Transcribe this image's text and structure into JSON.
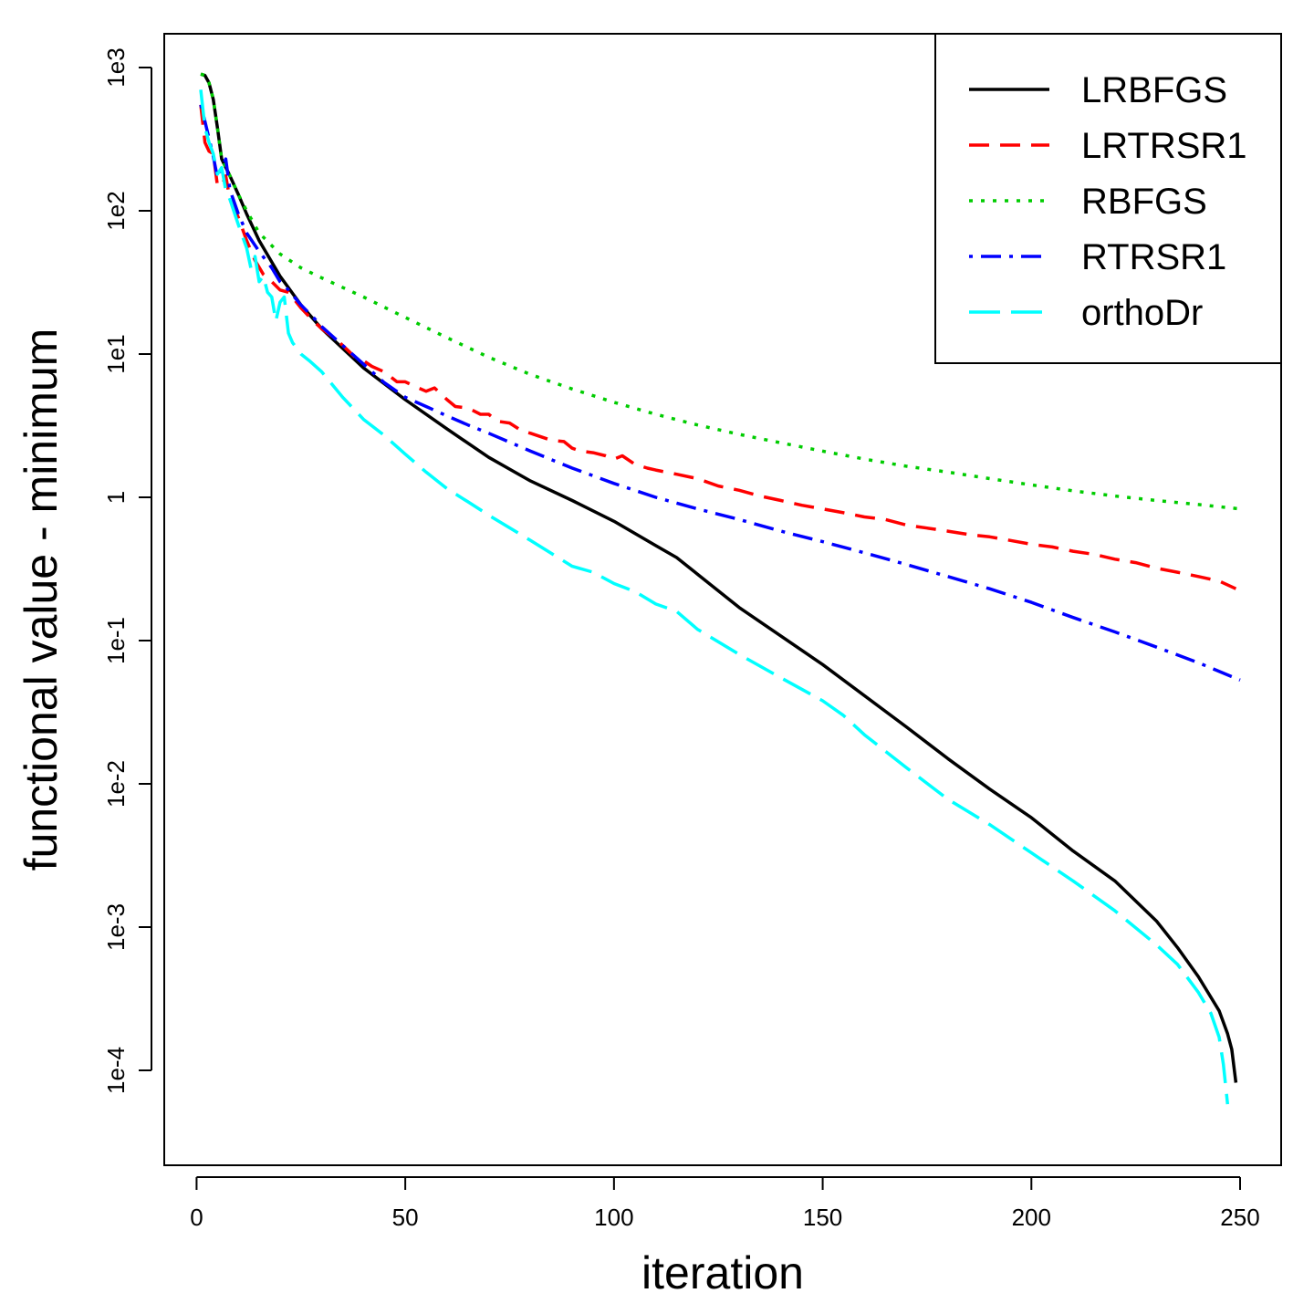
{
  "chart_data": {
    "type": "line",
    "title": "",
    "xlabel": "iteration",
    "ylabel": "functional value - minimum",
    "xlim": [
      -8,
      260
    ],
    "ylim_log10": [
      -4.65,
      3.25
    ],
    "y_scale": "log",
    "xticks": [
      0,
      50,
      100,
      150,
      200,
      250
    ],
    "xtick_labels": [
      "0",
      "50",
      "100",
      "150",
      "200",
      "250"
    ],
    "yticks_log10": [
      3,
      2,
      1,
      0,
      -1,
      -2,
      -3,
      -4
    ],
    "ytick_labels": [
      "1e3",
      "1e2",
      "1e1",
      "1",
      "1e-1",
      "1e-2",
      "1e-3",
      "1e-4"
    ],
    "grid": false,
    "legend_position": "top-right",
    "series": [
      {
        "name": "LRBFGS",
        "color": "#000000",
        "dash": "solid",
        "x": [
          1,
          2,
          3,
          4,
          5,
          6,
          8,
          10,
          12,
          15,
          20,
          25,
          30,
          40,
          50,
          60,
          70,
          80,
          90,
          100,
          110,
          115,
          130,
          150,
          170,
          180,
          190,
          200,
          210,
          220,
          230,
          235,
          240,
          245,
          247,
          248,
          249
        ],
        "y": [
          900,
          880,
          780,
          600,
          380,
          230,
          175,
          130,
          95,
          62,
          35,
          22,
          15,
          8,
          4.8,
          3.0,
          1.9,
          1.3,
          0.95,
          0.68,
          0.46,
          0.38,
          0.17,
          0.068,
          0.025,
          0.015,
          0.0092,
          0.0058,
          0.0034,
          0.0021,
          0.0011,
          0.00072,
          0.00045,
          0.00026,
          0.00018,
          0.00014,
          8.2e-05
        ]
      },
      {
        "name": "LRTRSR1",
        "color": "#ff0000",
        "dash": "dashed",
        "x": [
          1,
          2,
          3,
          4,
          5,
          6,
          7,
          8,
          10,
          12,
          14,
          16,
          18,
          20,
          22,
          25,
          28,
          30,
          33,
          35,
          38,
          40,
          42,
          45,
          48,
          50,
          52,
          55,
          57,
          60,
          62,
          65,
          68,
          70,
          72,
          75,
          78,
          80,
          85,
          88,
          90,
          92,
          95,
          98,
          100,
          102,
          105,
          108,
          110,
          115,
          120,
          125,
          130,
          135,
          140,
          145,
          150,
          155,
          160,
          165,
          170,
          175,
          180,
          185,
          190,
          195,
          200,
          205,
          210,
          215,
          220,
          225,
          230,
          235,
          240,
          245,
          249
        ],
        "y": [
          550,
          300,
          260,
          250,
          150,
          150,
          175,
          120,
          90,
          62,
          45,
          36,
          32,
          28,
          27,
          21,
          17,
          15,
          13,
          11.5,
          9.5,
          9.0,
          8.2,
          7.5,
          6.4,
          6.4,
          6.0,
          5.5,
          5.8,
          4.8,
          4.3,
          4.2,
          3.8,
          3.8,
          3.4,
          3.3,
          2.9,
          2.8,
          2.5,
          2.45,
          2.2,
          2.1,
          2.05,
          1.95,
          1.85,
          1.95,
          1.7,
          1.6,
          1.55,
          1.45,
          1.35,
          1.2,
          1.12,
          1.02,
          0.95,
          0.88,
          0.83,
          0.78,
          0.73,
          0.7,
          0.64,
          0.61,
          0.58,
          0.55,
          0.53,
          0.5,
          0.47,
          0.45,
          0.42,
          0.4,
          0.37,
          0.35,
          0.32,
          0.3,
          0.28,
          0.26,
          0.23
        ]
      },
      {
        "name": "RBFGS",
        "color": "#00cc00",
        "dash": "dotted",
        "x": [
          1,
          2,
          3,
          4,
          5,
          6,
          8,
          10,
          12,
          15,
          20,
          25,
          30,
          40,
          50,
          60,
          70,
          80,
          90,
          100,
          110,
          120,
          130,
          140,
          150,
          160,
          170,
          180,
          190,
          200,
          210,
          220,
          230,
          240,
          250
        ],
        "y": [
          900,
          880,
          780,
          600,
          380,
          230,
          175,
          130,
          100,
          70,
          50,
          40,
          34,
          25,
          18,
          13,
          9.5,
          7.2,
          5.7,
          4.6,
          3.8,
          3.2,
          2.75,
          2.4,
          2.1,
          1.85,
          1.65,
          1.5,
          1.35,
          1.22,
          1.11,
          1.02,
          0.95,
          0.89,
          0.83
        ]
      },
      {
        "name": "RTRSR1",
        "color": "#0000ff",
        "dash": "dashdot",
        "x": [
          1,
          2,
          3,
          4,
          5,
          6,
          7,
          8,
          10,
          12,
          15,
          18,
          20,
          22,
          25,
          28,
          30,
          35,
          40,
          45,
          50,
          55,
          60,
          65,
          70,
          80,
          90,
          100,
          110,
          120,
          130,
          140,
          150,
          160,
          170,
          180,
          190,
          200,
          210,
          220,
          230,
          240,
          250
        ],
        "y": [
          550,
          420,
          320,
          240,
          170,
          200,
          230,
          140,
          95,
          70,
          52,
          40,
          32,
          28,
          22,
          18,
          15.5,
          11.5,
          8.5,
          6.3,
          5.0,
          4.3,
          3.7,
          3.2,
          2.8,
          2.1,
          1.6,
          1.25,
          1.0,
          0.83,
          0.7,
          0.58,
          0.49,
          0.41,
          0.34,
          0.28,
          0.23,
          0.185,
          0.145,
          0.115,
          0.09,
          0.07,
          0.053
        ]
      },
      {
        "name": "orthoDr",
        "color": "#00ffff",
        "dash": "longdash",
        "x": [
          1,
          2,
          3,
          4,
          5,
          6,
          7,
          8,
          10,
          12,
          13,
          14,
          15,
          16,
          17,
          18,
          19,
          20,
          21,
          22,
          23,
          24,
          25,
          27,
          30,
          35,
          40,
          45,
          50,
          55,
          60,
          65,
          70,
          80,
          90,
          95,
          100,
          105,
          110,
          115,
          120,
          130,
          140,
          150,
          155,
          160,
          170,
          180,
          190,
          200,
          210,
          220,
          230,
          235,
          240,
          243,
          245,
          246,
          247
        ],
        "y": [
          700,
          380,
          300,
          250,
          180,
          200,
          140,
          120,
          80,
          55,
          40,
          48,
          32,
          35,
          27,
          25,
          17,
          23,
          25,
          14,
          12,
          11,
          10,
          9,
          7.5,
          5.0,
          3.5,
          2.7,
          2.0,
          1.5,
          1.15,
          0.93,
          0.75,
          0.5,
          0.33,
          0.3,
          0.25,
          0.22,
          0.18,
          0.16,
          0.12,
          0.08,
          0.055,
          0.038,
          0.03,
          0.022,
          0.013,
          0.0078,
          0.0052,
          0.0033,
          0.0021,
          0.0013,
          0.00075,
          0.00055,
          0.00035,
          0.00025,
          0.00017,
          0.00011,
          5.8e-05
        ]
      }
    ]
  }
}
